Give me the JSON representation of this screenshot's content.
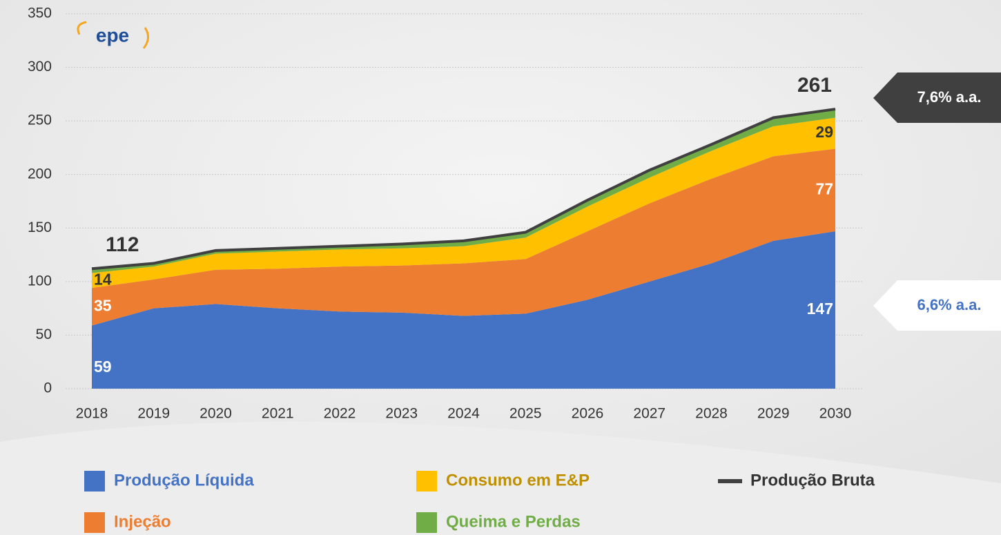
{
  "chart_data": {
    "type": "area",
    "logo": "epe",
    "categories": [
      "2018",
      "2019",
      "2020",
      "2021",
      "2022",
      "2023",
      "2024",
      "2025",
      "2026",
      "2027",
      "2028",
      "2029",
      "2030"
    ],
    "series": [
      {
        "name": "Produção Líquida",
        "color": "#4472c4",
        "values": [
          59,
          75,
          79,
          75,
          72,
          71,
          68,
          70,
          83,
          100,
          117,
          138,
          147
        ]
      },
      {
        "name": "Injeção",
        "color": "#ed7d31",
        "values": [
          35,
          27,
          32,
          37,
          42,
          44,
          49,
          51,
          64,
          73,
          79,
          79,
          77
        ]
      },
      {
        "name": "Consumo em E&P",
        "color": "#ffc000",
        "values": [
          14,
          12,
          15,
          16,
          16,
          16,
          16,
          20,
          23,
          24,
          26,
          28,
          29
        ]
      },
      {
        "name": "Queima e Perdas",
        "color": "#70ad47",
        "values": [
          4,
          3,
          3,
          3,
          3,
          4,
          5,
          5,
          6,
          7,
          6,
          8,
          8
        ]
      },
      {
        "name": "Produção Bruta",
        "color": "#404040",
        "type": "line",
        "values": [
          112,
          117,
          129,
          131,
          133,
          135,
          138,
          146,
          176,
          204,
          228,
          253,
          261
        ]
      }
    ],
    "ylim": [
      0,
      350
    ],
    "yticks": [
      0,
      50,
      100,
      150,
      200,
      250,
      300,
      350
    ],
    "grid": true,
    "annotations": [
      "7,6% a.a.",
      "6,6% a.a."
    ]
  }
}
